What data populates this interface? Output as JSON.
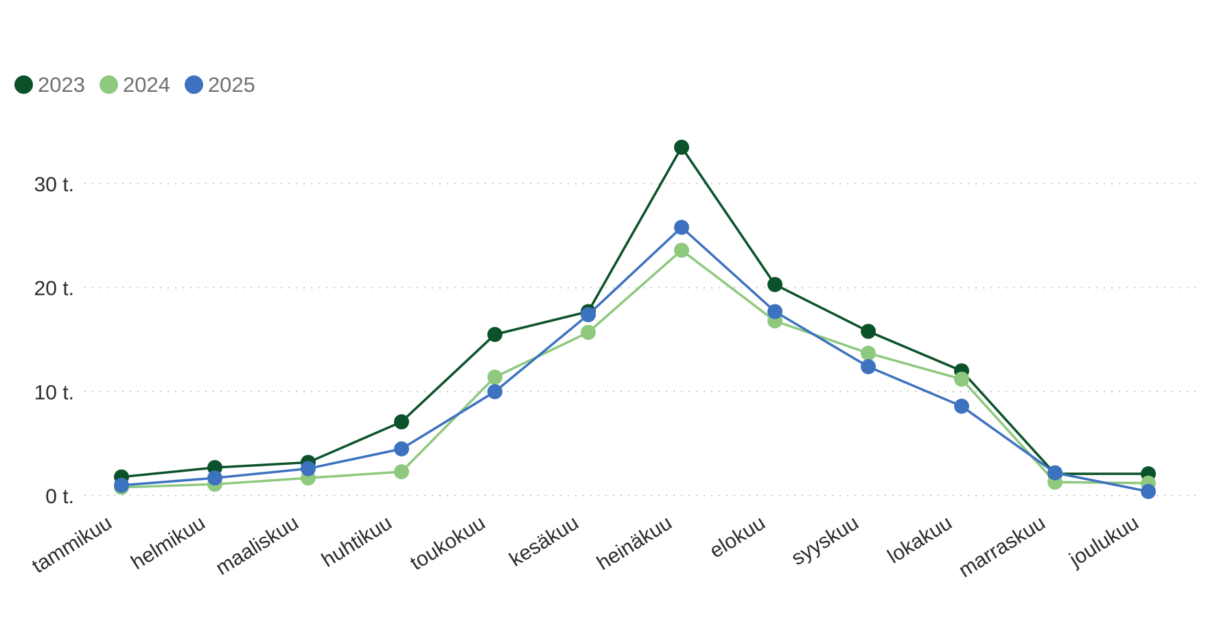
{
  "chart_data": {
    "type": "line",
    "title": "",
    "categories": [
      "tammikuu",
      "helmikuu",
      "maaliskuu",
      "huhtikuu",
      "toukokuu",
      "kesäkuu",
      "heinäkuu",
      "elokuu",
      "syyskuu",
      "lokakuu",
      "marraskuu",
      "joulukuu"
    ],
    "series": [
      {
        "name": "2023",
        "color": "#0b522a",
        "values": [
          1.8,
          2.7,
          3.2,
          7.1,
          15.5,
          17.7,
          33.5,
          20.3,
          15.8,
          12.0,
          2.1,
          2.1
        ]
      },
      {
        "name": "2024",
        "color": "#8ec97e",
        "values": [
          0.8,
          1.1,
          1.7,
          2.3,
          11.4,
          15.7,
          23.6,
          16.8,
          13.7,
          11.2,
          1.3,
          1.2
        ]
      },
      {
        "name": "2025",
        "color": "#3d72c0",
        "values": [
          1.0,
          1.7,
          2.6,
          4.5,
          10.0,
          17.4,
          25.8,
          17.7,
          12.4,
          8.6,
          2.2,
          0.4
        ]
      }
    ],
    "y_ticks": [
      {
        "value": 0,
        "label": "0 t."
      },
      {
        "value": 10,
        "label": "10 t."
      },
      {
        "value": 20,
        "label": "20 t."
      },
      {
        "value": 30,
        "label": "30 t."
      }
    ],
    "ylim": [
      0,
      35
    ],
    "xlabel": "",
    "ylabel": "",
    "grid": "horizontal-dotted",
    "legend_position": "top-left",
    "x_label_rotation_deg": -32
  },
  "colors": {
    "background": "#ffffff",
    "grid": "#c7c7c7",
    "axis_text": "#2b2b2b",
    "legend_text": "#6f6f6f"
  }
}
